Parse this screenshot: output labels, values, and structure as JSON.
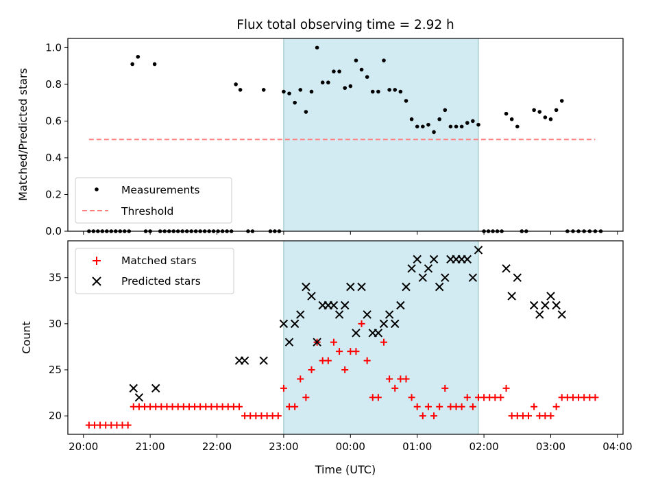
{
  "title": "Flux total observing time = 2.92 h",
  "xlabel": "Time (UTC)",
  "x_ticks": [
    "20:00",
    "21:00",
    "22:00",
    "23:00",
    "00:00",
    "01:00",
    "02:00",
    "03:00",
    "04:00"
  ],
  "colors": {
    "shade": "#add8e6",
    "measurements": "#000000",
    "threshold": "#ff7f7f",
    "matched": "#ff0000",
    "predicted": "#000000"
  },
  "chart_data": [
    {
      "type": "scatter",
      "ylabel": "Matched/Predicted stars",
      "xlim": [
        "19:46",
        "04:05"
      ],
      "ylim": [
        0,
        1.05
      ],
      "y_ticks": [
        "0.0",
        "0.2",
        "0.4",
        "0.6",
        "0.8",
        "1.0"
      ],
      "shaded_interval": [
        "23:00",
        "01:55"
      ],
      "legend": {
        "placement": "lower left",
        "items": [
          "Measurements",
          "Threshold"
        ]
      },
      "threshold": {
        "name": "Threshold",
        "y": 0.5,
        "x": [
          "20:05",
          "03:40"
        ]
      },
      "series": [
        {
          "name": "Measurements",
          "points": [
            [
              "20:05",
              0
            ],
            [
              "20:09",
              0
            ],
            [
              "20:13",
              0
            ],
            [
              "20:17",
              0
            ],
            [
              "20:21",
              0
            ],
            [
              "20:25",
              0
            ],
            [
              "20:29",
              0
            ],
            [
              "20:33",
              0
            ],
            [
              "20:37",
              0
            ],
            [
              "20:41",
              0
            ],
            [
              "20:44",
              0.91
            ],
            [
              "20:49",
              0.95
            ],
            [
              "20:56",
              0
            ],
            [
              "21:00",
              0
            ],
            [
              "21:04",
              0.91
            ],
            [
              "21:09",
              0
            ],
            [
              "21:13",
              0
            ],
            [
              "21:17",
              0
            ],
            [
              "21:21",
              0
            ],
            [
              "21:25",
              0
            ],
            [
              "21:29",
              0
            ],
            [
              "21:33",
              0
            ],
            [
              "21:37",
              0
            ],
            [
              "21:41",
              0
            ],
            [
              "21:45",
              0
            ],
            [
              "21:49",
              0
            ],
            [
              "21:53",
              0
            ],
            [
              "21:57",
              0
            ],
            [
              "22:01",
              0
            ],
            [
              "22:05",
              0
            ],
            [
              "22:09",
              0
            ],
            [
              "22:13",
              0
            ],
            [
              "22:17",
              0.8
            ],
            [
              "22:21",
              0.77
            ],
            [
              "22:28",
              0
            ],
            [
              "22:32",
              0
            ],
            [
              "22:42",
              0.77
            ],
            [
              "22:48",
              0
            ],
            [
              "22:52",
              0
            ],
            [
              "22:56",
              0
            ],
            [
              "23:00",
              0.76
            ],
            [
              "23:05",
              0.75
            ],
            [
              "23:10",
              0.7
            ],
            [
              "23:15",
              0.77
            ],
            [
              "23:20",
              0.65
            ],
            [
              "23:25",
              0.76
            ],
            [
              "23:30",
              1.0
            ],
            [
              "23:35",
              0.81
            ],
            [
              "23:40",
              0.81
            ],
            [
              "23:45",
              0.87
            ],
            [
              "23:50",
              0.87
            ],
            [
              "23:55",
              0.78
            ],
            [
              "00:00",
              0.79
            ],
            [
              "00:05",
              0.93
            ],
            [
              "00:10",
              0.88
            ],
            [
              "00:15",
              0.84
            ],
            [
              "00:20",
              0.76
            ],
            [
              "00:25",
              0.76
            ],
            [
              "00:30",
              0.93
            ],
            [
              "00:35",
              0.77
            ],
            [
              "00:40",
              0.77
            ],
            [
              "00:45",
              0.76
            ],
            [
              "00:50",
              0.71
            ],
            [
              "00:55",
              0.61
            ],
            [
              "01:00",
              0.57
            ],
            [
              "01:05",
              0.57
            ],
            [
              "01:10",
              0.58
            ],
            [
              "01:15",
              0.54
            ],
            [
              "01:20",
              0.61
            ],
            [
              "01:25",
              0.66
            ],
            [
              "01:30",
              0.57
            ],
            [
              "01:35",
              0.57
            ],
            [
              "01:40",
              0.57
            ],
            [
              "01:45",
              0.59
            ],
            [
              "01:50",
              0.6
            ],
            [
              "01:55",
              0.58
            ],
            [
              "02:00",
              0
            ],
            [
              "02:04",
              0
            ],
            [
              "02:08",
              0
            ],
            [
              "02:12",
              0
            ],
            [
              "02:16",
              0
            ],
            [
              "02:20",
              0.64
            ],
            [
              "02:25",
              0.61
            ],
            [
              "02:30",
              0.57
            ],
            [
              "02:34",
              0
            ],
            [
              "02:38",
              0
            ],
            [
              "02:45",
              0.66
            ],
            [
              "02:50",
              0.65
            ],
            [
              "02:55",
              0.62
            ],
            [
              "03:00",
              0.61
            ],
            [
              "03:05",
              0.66
            ],
            [
              "03:10",
              0.71
            ],
            [
              "03:15",
              0
            ],
            [
              "03:20",
              0
            ],
            [
              "03:25",
              0
            ],
            [
              "03:30",
              0
            ],
            [
              "03:35",
              0
            ],
            [
              "03:40",
              0
            ],
            [
              "03:45",
              0
            ]
          ]
        }
      ]
    },
    {
      "type": "scatter",
      "ylabel": "Count",
      "xlim": [
        "19:46",
        "04:05"
      ],
      "ylim": [
        18,
        39
      ],
      "y_ticks": [
        "20",
        "25",
        "30",
        "35"
      ],
      "shaded_interval": [
        "23:00",
        "01:55"
      ],
      "legend": {
        "placement": "upper left",
        "items": [
          "Matched stars",
          "Predicted stars"
        ]
      },
      "series": [
        {
          "name": "Matched stars",
          "marker": "+",
          "points": [
            [
              "20:05",
              19
            ],
            [
              "20:10",
              19
            ],
            [
              "20:15",
              19
            ],
            [
              "20:20",
              19
            ],
            [
              "20:25",
              19
            ],
            [
              "20:30",
              19
            ],
            [
              "20:35",
              19
            ],
            [
              "20:40",
              19
            ],
            [
              "20:45",
              21
            ],
            [
              "20:50",
              21
            ],
            [
              "20:55",
              21
            ],
            [
              "21:00",
              21
            ],
            [
              "21:05",
              21
            ],
            [
              "21:10",
              21
            ],
            [
              "21:15",
              21
            ],
            [
              "21:20",
              21
            ],
            [
              "21:25",
              21
            ],
            [
              "21:30",
              21
            ],
            [
              "21:35",
              21
            ],
            [
              "21:40",
              21
            ],
            [
              "21:45",
              21
            ],
            [
              "21:50",
              21
            ],
            [
              "21:55",
              21
            ],
            [
              "22:00",
              21
            ],
            [
              "22:05",
              21
            ],
            [
              "22:10",
              21
            ],
            [
              "22:15",
              21
            ],
            [
              "22:20",
              21
            ],
            [
              "22:25",
              20
            ],
            [
              "22:30",
              20
            ],
            [
              "22:35",
              20
            ],
            [
              "22:40",
              20
            ],
            [
              "22:45",
              20
            ],
            [
              "22:50",
              20
            ],
            [
              "22:55",
              20
            ],
            [
              "23:00",
              23
            ],
            [
              "23:05",
              21
            ],
            [
              "23:10",
              21
            ],
            [
              "23:15",
              24
            ],
            [
              "23:20",
              22
            ],
            [
              "23:25",
              25
            ],
            [
              "23:30",
              28
            ],
            [
              "23:35",
              26
            ],
            [
              "23:40",
              26
            ],
            [
              "23:45",
              28
            ],
            [
              "23:50",
              27
            ],
            [
              "23:55",
              25
            ],
            [
              "00:00",
              27
            ],
            [
              "00:05",
              27
            ],
            [
              "00:10",
              30
            ],
            [
              "00:15",
              26
            ],
            [
              "00:20",
              22
            ],
            [
              "00:25",
              22
            ],
            [
              "00:30",
              28
            ],
            [
              "00:35",
              24
            ],
            [
              "00:40",
              23
            ],
            [
              "00:45",
              24
            ],
            [
              "00:50",
              24
            ],
            [
              "00:55",
              22
            ],
            [
              "01:00",
              21
            ],
            [
              "01:05",
              20
            ],
            [
              "01:10",
              21
            ],
            [
              "01:15",
              20
            ],
            [
              "01:20",
              21
            ],
            [
              "01:25",
              23
            ],
            [
              "01:30",
              21
            ],
            [
              "01:35",
              21
            ],
            [
              "01:40",
              21
            ],
            [
              "01:45",
              22
            ],
            [
              "01:50",
              21
            ],
            [
              "01:55",
              22
            ],
            [
              "02:00",
              22
            ],
            [
              "02:05",
              22
            ],
            [
              "02:10",
              22
            ],
            [
              "02:15",
              22
            ],
            [
              "02:20",
              23
            ],
            [
              "02:25",
              20
            ],
            [
              "02:30",
              20
            ],
            [
              "02:35",
              20
            ],
            [
              "02:40",
              20
            ],
            [
              "02:45",
              21
            ],
            [
              "02:50",
              20
            ],
            [
              "02:55",
              20
            ],
            [
              "03:00",
              20
            ],
            [
              "03:05",
              21
            ],
            [
              "03:10",
              22
            ],
            [
              "03:15",
              22
            ],
            [
              "03:20",
              22
            ],
            [
              "03:25",
              22
            ],
            [
              "03:30",
              22
            ],
            [
              "03:35",
              22
            ],
            [
              "03:40",
              22
            ]
          ]
        },
        {
          "name": "Predicted stars",
          "marker": "x",
          "points": [
            [
              "20:45",
              23
            ],
            [
              "20:50",
              22
            ],
            [
              "21:05",
              23
            ],
            [
              "22:20",
              26
            ],
            [
              "22:25",
              26
            ],
            [
              "22:42",
              26
            ],
            [
              "23:00",
              30
            ],
            [
              "23:05",
              28
            ],
            [
              "23:10",
              30
            ],
            [
              "23:15",
              31
            ],
            [
              "23:20",
              34
            ],
            [
              "23:25",
              33
            ],
            [
              "23:30",
              28
            ],
            [
              "23:35",
              32
            ],
            [
              "23:40",
              32
            ],
            [
              "23:45",
              32
            ],
            [
              "23:50",
              31
            ],
            [
              "23:55",
              32
            ],
            [
              "00:00",
              34
            ],
            [
              "00:05",
              29
            ],
            [
              "00:10",
              34
            ],
            [
              "00:15",
              31
            ],
            [
              "00:20",
              29
            ],
            [
              "00:25",
              29
            ],
            [
              "00:30",
              30
            ],
            [
              "00:35",
              31
            ],
            [
              "00:40",
              30
            ],
            [
              "00:45",
              32
            ],
            [
              "00:50",
              34
            ],
            [
              "00:55",
              36
            ],
            [
              "01:00",
              37
            ],
            [
              "01:05",
              35
            ],
            [
              "01:10",
              36
            ],
            [
              "01:15",
              37
            ],
            [
              "01:20",
              34
            ],
            [
              "01:25",
              35
            ],
            [
              "01:30",
              37
            ],
            [
              "01:35",
              37
            ],
            [
              "01:40",
              37
            ],
            [
              "01:45",
              37
            ],
            [
              "01:50",
              35
            ],
            [
              "01:55",
              38
            ],
            [
              "02:20",
              36
            ],
            [
              "02:25",
              33
            ],
            [
              "02:30",
              35
            ],
            [
              "02:45",
              32
            ],
            [
              "02:50",
              31
            ],
            [
              "02:55",
              32
            ],
            [
              "03:00",
              33
            ],
            [
              "03:05",
              32
            ],
            [
              "03:10",
              31
            ]
          ]
        }
      ]
    }
  ]
}
